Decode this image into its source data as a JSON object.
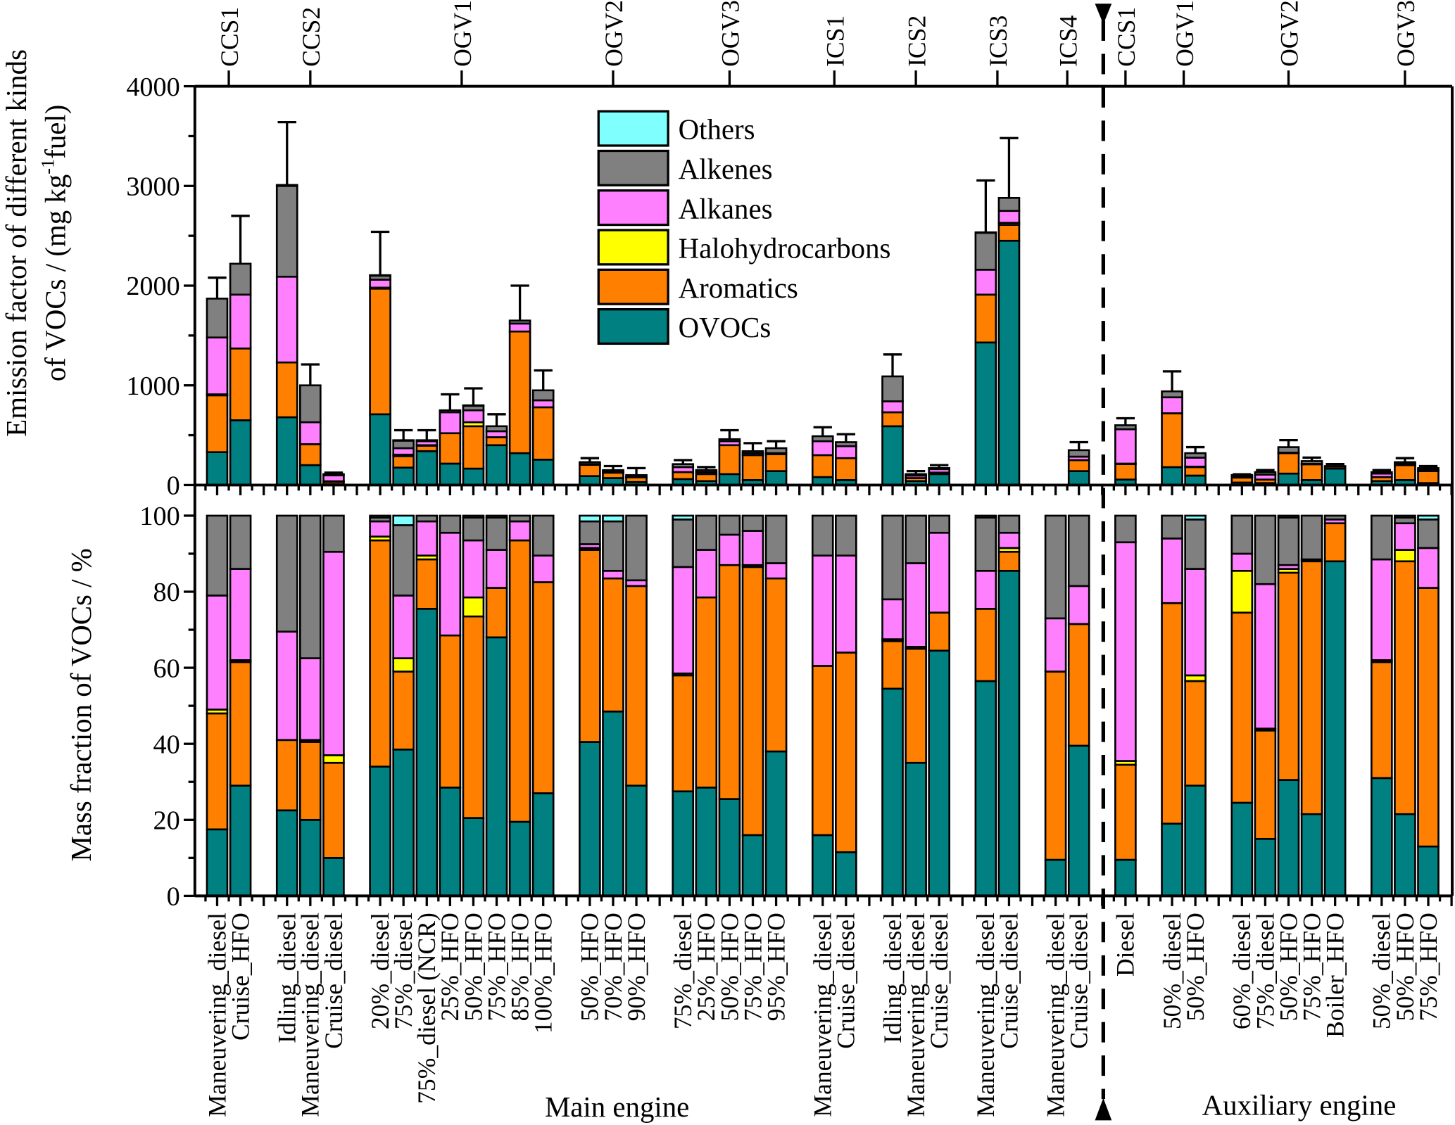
{
  "chart_data": [
    {
      "type": "bar",
      "stacked": true,
      "panel": "top",
      "ylabel_line1": "Emission factor of different kinds",
      "ylabel_line2_pre": "of VOCs / (mg kg",
      "ylabel_sup": "-1",
      "ylabel_line2_post": "fuel)",
      "ylim": [
        0,
        4000
      ],
      "yticks": [
        0,
        1000,
        2000,
        3000,
        4000
      ],
      "legend_position": "top-center",
      "series": [
        {
          "name": "OVOCs",
          "color": "#008080",
          "values": [
            330,
            650,
            680,
            200,
            10,
            710,
            175,
            340,
            215,
            165,
            400,
            320,
            255,
            90,
            70,
            30,
            60,
            40,
            110,
            50,
            140,
            80,
            50,
            590,
            40,
            110,
            1430,
            2450,
            0,
            140,
            55,
            180,
            95,
            25,
            20,
            115,
            50,
            165,
            40,
            50,
            20
          ]
        },
        {
          "name": "Aromatics",
          "color": "#FF8000",
          "values": [
            570,
            720,
            550,
            210,
            25,
            1260,
            115,
            55,
            305,
            425,
            80,
            1220,
            525,
            115,
            55,
            50,
            70,
            70,
            290,
            250,
            170,
            220,
            220,
            140,
            30,
            15,
            480,
            160,
            0,
            110,
            155,
            540,
            85,
            50,
            35,
            205,
            160,
            20,
            40,
            150,
            120
          ]
        },
        {
          "name": "Halohydrocarbons",
          "color": "#FFFF00",
          "values": [
            10,
            0,
            0,
            0,
            3,
            10,
            15,
            5,
            0,
            40,
            0,
            0,
            0,
            2,
            0,
            0,
            0,
            0,
            0,
            0,
            0,
            0,
            0,
            0,
            0,
            0,
            0,
            20,
            0,
            0,
            5,
            0,
            5,
            10,
            0,
            5,
            0,
            0,
            0,
            5,
            0
          ]
        },
        {
          "name": "Alkanes",
          "color": "#FF80FF",
          "values": [
            570,
            540,
            860,
            220,
            60,
            80,
            65,
            40,
            210,
            120,
            60,
            80,
            70,
            3,
            3,
            2,
            50,
            20,
            40,
            20,
            10,
            140,
            120,
            110,
            25,
            35,
            250,
            120,
            0,
            35,
            345,
            160,
            90,
            5,
            50,
            0,
            2,
            0,
            35,
            10,
            15
          ]
        },
        {
          "name": "Alkenes",
          "color": "#808080",
          "values": [
            390,
            310,
            910,
            370,
            12,
            40,
            75,
            10,
            20,
            45,
            50,
            30,
            100,
            20,
            20,
            18,
            30,
            20,
            20,
            20,
            50,
            50,
            40,
            250,
            15,
            10,
            370,
            130,
            0,
            65,
            40,
            60,
            45,
            10,
            25,
            55,
            28,
            5,
            15,
            15,
            15
          ]
        },
        {
          "name": "Others",
          "color": "#80FFFF",
          "values": [
            0,
            0,
            10,
            0,
            0,
            5,
            5,
            0,
            0,
            5,
            0,
            0,
            0,
            0,
            2,
            0,
            0,
            0,
            0,
            0,
            0,
            0,
            0,
            0,
            0,
            0,
            5,
            0,
            0,
            0,
            0,
            0,
            0,
            0,
            0,
            0,
            0,
            0,
            0,
            0,
            0
          ]
        }
      ],
      "error_plus": [
        210,
        480,
        630,
        210,
        15,
        435,
        100,
        100,
        160,
        170,
        120,
        350,
        200,
        40,
        40,
        70,
        40,
        30,
        90,
        80,
        70,
        90,
        80,
        220,
        30,
        30,
        520,
        600,
        0,
        80,
        70,
        200,
        60,
        8,
        20,
        70,
        35,
        20,
        20,
        40,
        20
      ]
    },
    {
      "type": "bar",
      "stacked": true,
      "panel": "bottom",
      "ylabel": "Mass fraction of VOCs / %",
      "ylim": [
        0,
        100
      ],
      "yticks": [
        0,
        20,
        40,
        60,
        80,
        100
      ],
      "series": [
        {
          "name": "OVOCs",
          "values": [
            17.5,
            29,
            22.5,
            20,
            10,
            34,
            38.5,
            75.5,
            28.5,
            20.5,
            68,
            19.5,
            27,
            40.5,
            48.5,
            29,
            27.5,
            28.5,
            25.5,
            16,
            38,
            16,
            11.5,
            54.5,
            35,
            64.5,
            56.5,
            85.5,
            9.5,
            39.5,
            9.5,
            19,
            29,
            24.5,
            15,
            30.5,
            21.5,
            88,
            31,
            21.5,
            13
          ]
        },
        {
          "name": "Aromatics",
          "values": [
            30.5,
            32.5,
            18.5,
            20.5,
            25,
            59.5,
            20.5,
            13,
            40,
            53,
            13,
            74,
            55.5,
            50.5,
            35,
            52.5,
            30.5,
            50,
            61.5,
            70.5,
            45.5,
            44.5,
            52.5,
            12.5,
            30,
            10,
            19,
            5,
            49.5,
            32,
            25,
            58,
            27.5,
            50,
            28.5,
            54.5,
            66.5,
            10,
            30.5,
            66.5,
            68
          ]
        },
        {
          "name": "Halohydrocarbons",
          "values": [
            1,
            0.5,
            0,
            0.5,
            2,
            1,
            3.5,
            1,
            0,
            5,
            0,
            0,
            0,
            0.5,
            0,
            0,
            0.5,
            0,
            0,
            0.5,
            0,
            0,
            0,
            0.5,
            0.5,
            0,
            0,
            1,
            0,
            0,
            1,
            0,
            1.5,
            11,
            0.5,
            1,
            0.5,
            0,
            0.5,
            3,
            0
          ]
        },
        {
          "name": "Alkanes",
          "values": [
            30,
            24,
            28.5,
            21.5,
            53.5,
            4,
            16.5,
            9,
            27,
            15,
            10,
            5,
            7,
            1,
            2,
            1.5,
            28,
            12.5,
            8,
            9,
            4,
            29,
            25.5,
            10.5,
            22,
            21,
            10,
            4,
            14,
            10,
            57.5,
            17,
            28,
            4.5,
            38,
            1,
            0,
            1,
            26.5,
            7,
            10.5
          ]
        },
        {
          "name": "Alkenes",
          "values": [
            21,
            14,
            30.5,
            37.5,
            9.5,
            1,
            18.5,
            1.5,
            4.5,
            6,
            8.5,
            1.5,
            10.5,
            6,
            13,
            17,
            12.5,
            9,
            5,
            4,
            12.5,
            10.5,
            10.5,
            22,
            12.5,
            4.5,
            14,
            4.5,
            27,
            18.5,
            7,
            6,
            13,
            10,
            18,
            12.5,
            11.5,
            1,
            11.5,
            1.5,
            7.5
          ]
        },
        {
          "name": "Others",
          "values": [
            0,
            0,
            0,
            0,
            0,
            0.5,
            2.5,
            0,
            0,
            0.5,
            0.5,
            0,
            0,
            1.5,
            1.5,
            0,
            1,
            0,
            0,
            0,
            0,
            0,
            0,
            0,
            0,
            0,
            0.5,
            0,
            0,
            0,
            0,
            0,
            1,
            0,
            0,
            0.5,
            0,
            0,
            0,
            0.5,
            1
          ]
        }
      ]
    }
  ],
  "categories": [
    "Maneuvering_diesel",
    "Cruise_HFO",
    "Idling_diesel",
    "Maneuvering_diesel",
    "Cruise_diesel",
    "20%_diesel",
    "75%_diesel",
    "75%_diesel (NCR)",
    "25%_HFO",
    "50%_HFO",
    "75%_HFO",
    "85%_HFO",
    "100%_HFO",
    "50%_HFO",
    "70%_HFO",
    "90%_HFO",
    "75%_diesel",
    "25%_HFO",
    "50%_HFO",
    "75%_HFO",
    "95%_HFO",
    "Maneuvering_diesel",
    "Cruise_diesel",
    "Idling_diesel",
    "Maneuvering_diesel",
    "Cruise_diesel",
    "Maneuvering_diesel",
    "Cruise_diesel",
    "Maneuvering_diesel",
    "Cruise_diesel",
    "Diesel",
    "50%_diesel",
    "50%_HFO",
    "60%_diesel",
    "75%_diesel",
    "50%_HFO",
    "75%_HFO",
    "Boiler_HFO",
    "50%_diesel",
    "50%_HFO",
    "75%_HFO"
  ],
  "groups": [
    {
      "label": "CCS1",
      "count": 2
    },
    {
      "label": "CCS2",
      "count": 3
    },
    {
      "label": "OGV1",
      "count": 8
    },
    {
      "label": "OGV2",
      "count": 3
    },
    {
      "label": "OGV3",
      "count": 5
    },
    {
      "label": "ICS1",
      "count": 2
    },
    {
      "label": "ICS2",
      "count": 3
    },
    {
      "label": "ICS3",
      "count": 2
    },
    {
      "label": "ICS4",
      "count": 2
    },
    {
      "label": "CCS1",
      "count": 1
    },
    {
      "label": "OGV1",
      "count": 2
    },
    {
      "label": "OGV2",
      "count": 5
    },
    {
      "label": "OGV3",
      "count": 3
    }
  ],
  "sections": {
    "main": "Main engine",
    "auxiliary": "Auxiliary engine"
  }
}
